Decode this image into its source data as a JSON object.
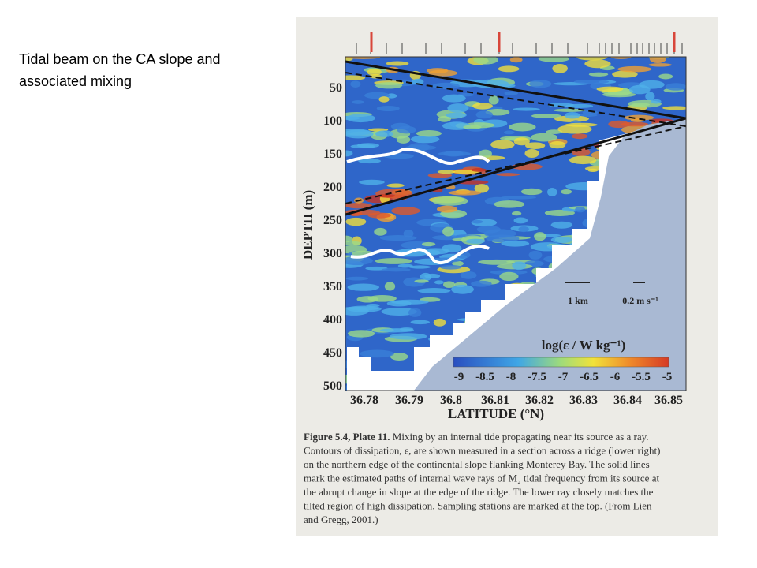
{
  "slide": {
    "title_lines": [
      "Tidal beam on the CA slope and",
      "associated mixing"
    ]
  },
  "figure": {
    "y_axis_label": "DEPTH (m)",
    "y_ticks": [
      "50",
      "100",
      "150",
      "200",
      "250",
      "300",
      "350",
      "400",
      "450",
      "500"
    ],
    "x_axis_label": "LATITUDE (°N)",
    "x_ticks": [
      "36.78",
      "36.79",
      "36.8",
      "36.81",
      "36.82",
      "36.83",
      "36.84",
      "36.85"
    ],
    "colorbar_label": "log(ε / W kg⁻¹)",
    "colorbar_ticks": [
      "-9",
      "-8.5",
      "-8",
      "-7.5",
      "-7",
      "-6.5",
      "-6",
      "-5.5",
      "-5"
    ],
    "scale_bars": [
      "1 km",
      "0.2 m s⁻¹"
    ]
  },
  "caption": {
    "heading": "Figure 5.4, Plate 11.",
    "lines": [
      " Mixing by an internal tide propagating near its source as a ray.",
      "Contours of dissipation, ε, are shown measured in a section across a ridge (lower right)",
      "on the northern edge of the continental slope flanking Monterey Bay. The solid lines",
      "mark the estimated paths of internal wave rays of M₂ tidal frequency from its source at",
      "the abrupt change in slope at the edge of the ridge. The lower ray closely matches the",
      "tilted region of high dissipation. Sampling stations are marked at the top. (From Lien",
      "and Gregg, 2001.)"
    ]
  }
}
